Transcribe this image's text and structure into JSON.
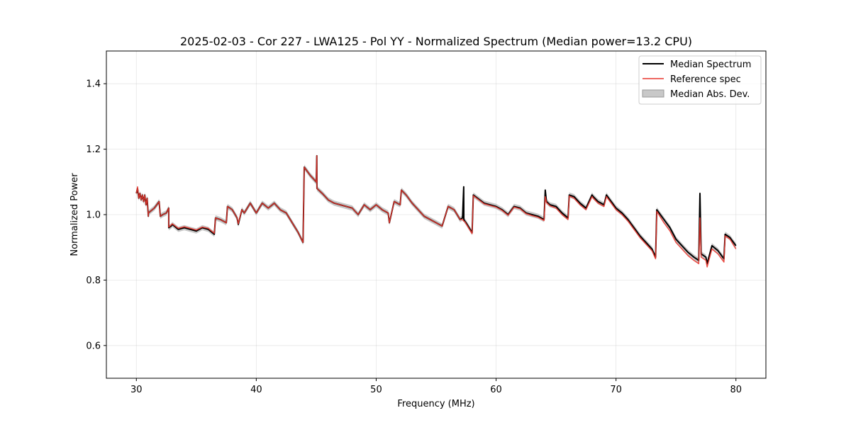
{
  "chart_data": {
    "type": "line",
    "title": "2025-02-03 - Cor 227 - LWA125 - Pol YY - Normalized Spectrum (Median power=13.2 CPU)",
    "xlabel": "Frequency (MHz)",
    "ylabel": "Normalized Power",
    "xlim": [
      27.5,
      82.5
    ],
    "ylim": [
      0.5,
      1.5
    ],
    "xticks": [
      30,
      40,
      50,
      60,
      70,
      80
    ],
    "yticks": [
      0.6,
      0.8,
      1.0,
      1.2,
      1.4
    ],
    "grid": true,
    "legend_position": "top-right",
    "colors": {
      "median": "#000000",
      "reference": "#e8362e",
      "mad": "#b0b0b0"
    },
    "legend": [
      {
        "label": "Median Spectrum",
        "kind": "line",
        "series": "median"
      },
      {
        "label": "Reference spec",
        "kind": "line",
        "series": "reference"
      },
      {
        "label": "Median Abs. Dev.",
        "kind": "patch",
        "series": "mad"
      }
    ],
    "series": [
      {
        "name": "Median Spectrum",
        "key": "median",
        "x": [
          30.0,
          30.1,
          30.2,
          30.3,
          30.4,
          30.5,
          30.6,
          30.7,
          30.8,
          30.9,
          31.0,
          31.0,
          31.5,
          31.9,
          32.0,
          32.2,
          32.5,
          32.7,
          32.7,
          32.9,
          33.0,
          33.5,
          34.0,
          34.5,
          35.0,
          35.5,
          36.0,
          36.5,
          36.6,
          37.0,
          37.5,
          37.6,
          38.0,
          38.4,
          38.5,
          38.8,
          39.0,
          39.5,
          40.0,
          40.5,
          41.0,
          41.5,
          42.0,
          42.5,
          43.0,
          43.5,
          43.9,
          44.0,
          44.2,
          44.5,
          45.0,
          45.05,
          45.06,
          45.5,
          46.0,
          46.5,
          47.0,
          47.5,
          48.0,
          48.5,
          49.0,
          49.5,
          50.0,
          50.5,
          51.0,
          51.1,
          51.5,
          52.0,
          52.1,
          52.5,
          53.0,
          54.0,
          55.0,
          55.5,
          56.0,
          56.5,
          57.0,
          57.2,
          57.3,
          57.31,
          57.4,
          57.5,
          58.0,
          58.1,
          59.0,
          60.0,
          60.5,
          61.0,
          61.5,
          62.0,
          62.5,
          63.0,
          63.5,
          64.0,
          64.1,
          64.2,
          64.5,
          65.0,
          65.5,
          66.0,
          66.1,
          66.5,
          67.0,
          67.5,
          68.0,
          68.1,
          68.5,
          69.0,
          69.2,
          69.5,
          70.0,
          70.5,
          71.0,
          71.5,
          72.0,
          72.5,
          73.0,
          73.3,
          73.4,
          74.0,
          74.5,
          75.0,
          75.5,
          76.0,
          76.5,
          76.9,
          77.0,
          77.1,
          77.5,
          77.6,
          78.0,
          78.5,
          79.0,
          79.1,
          79.5,
          80.0
        ],
        "values": [
          1.065,
          1.08,
          1.05,
          1.065,
          1.045,
          1.06,
          1.04,
          1.06,
          1.03,
          1.05,
          0.995,
          1.005,
          1.02,
          1.04,
          0.995,
          1.0,
          1.005,
          1.02,
          0.96,
          0.965,
          0.97,
          0.955,
          0.96,
          0.955,
          0.95,
          0.96,
          0.955,
          0.94,
          0.99,
          0.985,
          0.975,
          1.025,
          1.015,
          0.99,
          0.97,
          1.015,
          1.005,
          1.035,
          1.005,
          1.035,
          1.02,
          1.035,
          1.015,
          1.005,
          0.975,
          0.945,
          0.915,
          1.145,
          1.135,
          1.12,
          1.1,
          1.18,
          1.08,
          1.065,
          1.045,
          1.035,
          1.03,
          1.025,
          1.02,
          1.0,
          1.03,
          1.015,
          1.03,
          1.015,
          1.005,
          0.975,
          1.04,
          1.03,
          1.075,
          1.06,
          1.035,
          0.995,
          0.975,
          0.965,
          1.025,
          1.015,
          0.985,
          0.99,
          1.085,
          0.985,
          0.98,
          0.975,
          0.945,
          1.06,
          1.035,
          1.025,
          1.015,
          1.0,
          1.025,
          1.02,
          1.005,
          1.0,
          0.995,
          0.985,
          1.075,
          1.04,
          1.03,
          1.025,
          1.005,
          0.99,
          1.06,
          1.055,
          1.035,
          1.02,
          1.06,
          1.055,
          1.04,
          1.03,
          1.06,
          1.045,
          1.02,
          1.005,
          0.985,
          0.96,
          0.935,
          0.915,
          0.895,
          0.87,
          1.015,
          0.985,
          0.96,
          0.925,
          0.905,
          0.885,
          0.87,
          0.86,
          1.065,
          0.88,
          0.87,
          0.85,
          0.905,
          0.89,
          0.865,
          0.94,
          0.93,
          0.905
        ]
      },
      {
        "name": "Reference spec",
        "key": "reference",
        "x": [
          30.0,
          30.1,
          30.2,
          30.3,
          30.4,
          30.5,
          30.6,
          30.7,
          30.8,
          30.9,
          31.0,
          31.0,
          31.5,
          31.9,
          32.0,
          32.2,
          32.5,
          32.7,
          32.7,
          32.9,
          33.0,
          33.5,
          34.0,
          34.5,
          35.0,
          35.5,
          36.0,
          36.5,
          36.6,
          37.0,
          37.5,
          37.6,
          38.0,
          38.4,
          38.5,
          38.8,
          39.0,
          39.5,
          40.0,
          40.5,
          41.0,
          41.5,
          42.0,
          42.5,
          43.0,
          43.5,
          43.9,
          44.0,
          44.2,
          44.5,
          45.0,
          45.05,
          45.06,
          45.5,
          46.0,
          46.5,
          47.0,
          47.5,
          48.0,
          48.5,
          49.0,
          49.5,
          50.0,
          50.5,
          51.0,
          51.1,
          51.5,
          52.0,
          52.1,
          52.5,
          53.0,
          54.0,
          55.0,
          55.5,
          56.0,
          56.5,
          57.0,
          57.2,
          57.3,
          57.31,
          57.4,
          57.5,
          58.0,
          58.1,
          59.0,
          60.0,
          60.5,
          61.0,
          61.5,
          62.0,
          62.5,
          63.0,
          63.5,
          64.0,
          64.1,
          64.2,
          64.5,
          65.0,
          65.5,
          66.0,
          66.1,
          66.5,
          67.0,
          67.5,
          68.0,
          68.1,
          68.5,
          69.0,
          69.2,
          69.5,
          70.0,
          70.5,
          71.0,
          71.5,
          72.0,
          72.5,
          73.0,
          73.3,
          73.4,
          74.0,
          74.5,
          75.0,
          75.5,
          76.0,
          76.5,
          76.9,
          77.0,
          77.1,
          77.5,
          77.6,
          78.0,
          78.5,
          79.0,
          79.1,
          79.5,
          80.0
        ],
        "values": [
          1.065,
          1.085,
          1.05,
          1.065,
          1.045,
          1.06,
          1.04,
          1.06,
          1.03,
          1.05,
          0.995,
          1.005,
          1.02,
          1.04,
          0.995,
          1.0,
          1.005,
          1.02,
          0.962,
          0.968,
          0.972,
          0.958,
          0.963,
          0.958,
          0.953,
          0.962,
          0.958,
          0.943,
          0.99,
          0.985,
          0.975,
          1.025,
          1.015,
          0.99,
          0.972,
          1.015,
          1.005,
          1.035,
          1.005,
          1.035,
          1.02,
          1.035,
          1.015,
          1.005,
          0.975,
          0.945,
          0.915,
          1.145,
          1.135,
          1.12,
          1.1,
          1.18,
          1.08,
          1.065,
          1.045,
          1.035,
          1.03,
          1.025,
          1.02,
          1.0,
          1.03,
          1.015,
          1.03,
          1.015,
          1.005,
          0.975,
          1.04,
          1.03,
          1.075,
          1.06,
          1.035,
          0.995,
          0.975,
          0.965,
          1.025,
          1.015,
          0.985,
          0.985,
          0.98,
          0.98,
          0.978,
          0.972,
          0.942,
          1.058,
          1.033,
          1.023,
          1.013,
          0.998,
          1.023,
          1.018,
          1.003,
          0.997,
          0.992,
          0.982,
          1.055,
          1.037,
          1.027,
          1.02,
          1.0,
          0.985,
          1.057,
          1.05,
          1.03,
          1.015,
          1.055,
          1.05,
          1.035,
          1.025,
          1.055,
          1.04,
          1.015,
          1.0,
          0.98,
          0.955,
          0.93,
          0.91,
          0.89,
          0.865,
          1.01,
          0.975,
          0.95,
          0.915,
          0.895,
          0.875,
          0.86,
          0.85,
          0.99,
          0.87,
          0.86,
          0.84,
          0.895,
          0.88,
          0.855,
          0.935,
          0.925,
          0.895
        ]
      }
    ],
    "mad_halfwidth": 0.008
  }
}
